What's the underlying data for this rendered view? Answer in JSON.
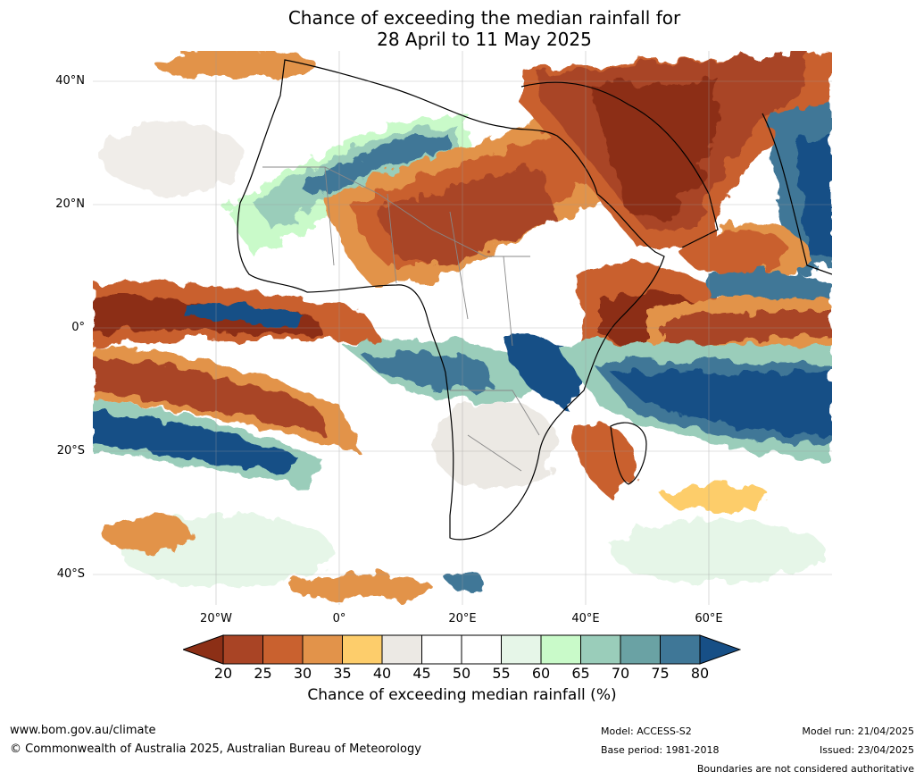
{
  "title_line1": "Chance of exceeding the median rainfall for",
  "title_line2": "28 April to 11 May 2025",
  "map": {
    "lat_labels": [
      "40°N",
      "20°N",
      "0°",
      "20°S",
      "40°S"
    ],
    "lon_labels": [
      "20°W",
      "0°",
      "20°E",
      "40°E",
      "60°E"
    ],
    "lat_values": [
      40,
      20,
      0,
      -20,
      -40
    ],
    "lon_values": [
      -20,
      0,
      20,
      40,
      60
    ],
    "extent": {
      "lon_min": -40,
      "lon_max": 80,
      "lat_min": -45,
      "lat_max": 45
    }
  },
  "colorbar": {
    "ticks": [
      "20",
      "25",
      "30",
      "35",
      "40",
      "45",
      "50",
      "55",
      "60",
      "65",
      "70",
      "75",
      "80"
    ],
    "under_color": "#8c2f16",
    "over_color": "#174f86",
    "bin_colors": [
      "#a94425",
      "#c9612f",
      "#e2934a",
      "#fdcd6b",
      "#ece9e4",
      "#ffffff",
      "#ffffff",
      "#e6f6e8",
      "#c9fac9",
      "#9acdba",
      "#6aa2a4",
      "#3f7797"
    ],
    "label": "Chance of exceeding median rainfall (%)"
  },
  "footer": {
    "website": "www.bom.gov.au/climate",
    "copyright": "© Commonwealth of Australia 2025, Australian Bureau of Meteorology",
    "model": "Model: ACCESS-S2",
    "base_period": "Base period: 1981-2018",
    "model_run": "Model run: 21/04/2025",
    "issued": "Issued: 23/04/2025",
    "boundaries_note": "Boundaries are not considered authoritative"
  }
}
